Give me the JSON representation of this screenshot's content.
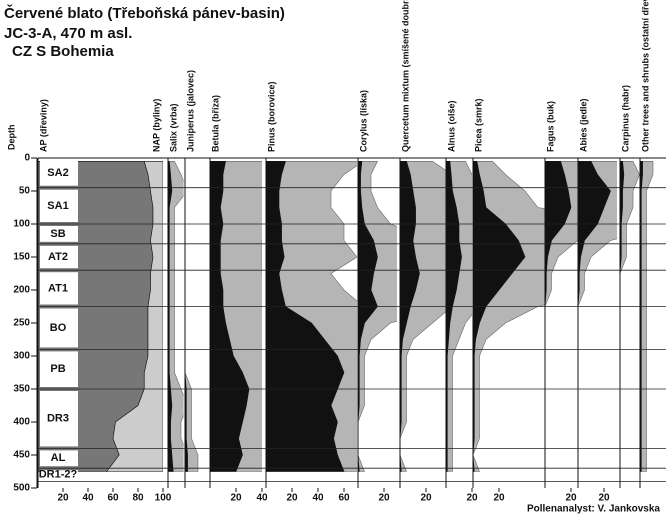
{
  "chart_data": {
    "type": "pollen",
    "title": "Červené blato (Třeboňská pánev-basin)",
    "subtitle": "JC-3-A, 470 m asl.",
    "region": "CZ  S Bohemia",
    "ylabel": "Depth",
    "credit": "Pollenanalyst: V. Jankovska",
    "ylim": [
      0,
      500
    ],
    "yticks": [
      0,
      50,
      100,
      150,
      200,
      250,
      300,
      350,
      400,
      450,
      500
    ],
    "depths": [
      5,
      25,
      50,
      75,
      100,
      125,
      150,
      175,
      200,
      225,
      250,
      275,
      300,
      325,
      350,
      375,
      400,
      425,
      450,
      475
    ],
    "exaggeration": 5,
    "zones": [
      {
        "label": "SA2",
        "top": 0,
        "bottom": 45
      },
      {
        "label": "SA1",
        "top": 45,
        "bottom": 100
      },
      {
        "label": "SB",
        "top": 100,
        "bottom": 130
      },
      {
        "label": "AT2",
        "top": 130,
        "bottom": 170
      },
      {
        "label": "AT1",
        "top": 170,
        "bottom": 225
      },
      {
        "label": "BO",
        "top": 225,
        "bottom": 290
      },
      {
        "label": "PB",
        "top": 290,
        "bottom": 350
      },
      {
        "label": "DR3",
        "top": 350,
        "bottom": 440
      },
      {
        "label": "AL",
        "top": 440,
        "bottom": 470
      },
      {
        "label": "DR1-2?",
        "top": 470,
        "bottom": 490
      }
    ],
    "series": [
      {
        "name": "AP (dřeviny)",
        "color": "#777777",
        "xlim": [
          0,
          100
        ],
        "xticks": [
          20,
          40,
          60,
          80,
          100
        ],
        "values": [
          85,
          88,
          90,
          92,
          92,
          90,
          92,
          90,
          90,
          88,
          88,
          88,
          88,
          85,
          85,
          80,
          62,
          60,
          65,
          55
        ]
      },
      {
        "name": "NAP (byliny)",
        "color": "#cccccc",
        "xlim": [
          0,
          100
        ],
        "from_right": true,
        "values": [
          15,
          12,
          10,
          8,
          8,
          10,
          8,
          10,
          10,
          12,
          12,
          12,
          12,
          15,
          15,
          20,
          38,
          40,
          35,
          45
        ]
      },
      {
        "name": "Salix (vrba)",
        "color": "#111111",
        "xlim": [
          0,
          12
        ],
        "values": [
          1,
          2,
          3,
          1,
          1,
          1,
          1,
          1,
          1,
          1,
          1,
          1,
          1,
          1,
          2,
          3,
          2,
          2,
          3,
          4
        ]
      },
      {
        "name": "Juniperus (jalovec)",
        "color": "#111111",
        "xlim": [
          0,
          18
        ],
        "values": [
          0,
          0,
          0,
          0,
          0,
          0,
          0,
          0,
          0,
          0,
          0,
          0,
          0,
          0,
          1,
          1,
          1,
          1,
          2,
          2
        ]
      },
      {
        "name": "Betula (bříza)",
        "color": "#111111",
        "xlim": [
          0,
          40
        ],
        "xticks": [
          20,
          40
        ],
        "values": [
          12,
          10,
          10,
          8,
          10,
          8,
          8,
          8,
          10,
          10,
          12,
          15,
          18,
          25,
          30,
          28,
          25,
          22,
          25,
          20
        ]
      },
      {
        "name": "Pinus (borovice)",
        "color": "#111111",
        "xlim": [
          0,
          70
        ],
        "xticks": [
          20,
          40,
          60
        ],
        "values": [
          15,
          12,
          10,
          10,
          12,
          12,
          14,
          10,
          12,
          15,
          35,
          45,
          55,
          60,
          55,
          50,
          55,
          52,
          55,
          60
        ]
      },
      {
        "name": "Corylus (líska)",
        "color": "#111111",
        "xlim": [
          0,
          30
        ],
        "xticks": [
          20
        ],
        "values": [
          3,
          2,
          2,
          3,
          5,
          12,
          15,
          12,
          10,
          15,
          5,
          2,
          1,
          1,
          1,
          1,
          0,
          0,
          0,
          1
        ]
      },
      {
        "name": "Quercetum mixtum (smíšené doubravy)",
        "color": "#111111",
        "xlim": [
          0,
          35
        ],
        "xticks": [
          20
        ],
        "values": [
          5,
          8,
          10,
          12,
          12,
          10,
          12,
          15,
          12,
          8,
          5,
          2,
          1,
          1,
          1,
          1,
          1,
          0,
          0,
          1
        ]
      },
      {
        "name": "Alnus (olše)",
        "color": "#111111",
        "xlim": [
          0,
          20
        ],
        "xticks": [
          20
        ],
        "values": [
          3,
          4,
          5,
          8,
          10,
          10,
          12,
          10,
          8,
          5,
          3,
          2,
          1,
          1,
          1,
          1,
          1,
          1,
          1,
          1
        ]
      },
      {
        "name": "Picea (smrk)",
        "color": "#111111",
        "xlim": [
          0,
          55
        ],
        "xticks": [
          20
        ],
        "values": [
          3,
          5,
          8,
          10,
          25,
          35,
          40,
          30,
          20,
          10,
          5,
          2,
          1,
          1,
          1,
          1,
          1,
          1,
          0,
          1
        ]
      },
      {
        "name": "Fagus (buk)",
        "color": "#111111",
        "xlim": [
          0,
          25
        ],
        "xticks": [
          20
        ],
        "values": [
          12,
          15,
          18,
          20,
          15,
          5,
          2,
          1,
          1,
          0,
          0,
          0,
          0,
          0,
          0,
          0,
          0,
          0,
          0,
          0
        ]
      },
      {
        "name": "Abies (jedle)",
        "color": "#111111",
        "xlim": [
          0,
          30
        ],
        "xticks": [
          20
        ],
        "values": [
          10,
          15,
          25,
          20,
          15,
          5,
          2,
          1,
          1,
          0,
          0,
          0,
          0,
          0,
          0,
          0,
          0,
          0,
          0,
          0
        ]
      },
      {
        "name": "Carpinus (habr)",
        "color": "#111111",
        "xlim": [
          0,
          15
        ],
        "values": [
          2,
          3,
          2,
          2,
          1,
          1,
          1,
          0,
          0,
          0,
          0,
          0,
          0,
          0,
          0,
          0,
          0,
          0,
          0,
          0
        ]
      },
      {
        "name": "Other trees and shrubs (ostatní dřeviny a keře)",
        "color": "#111111",
        "xlim": [
          0,
          20
        ],
        "values": [
          2,
          2,
          1,
          1,
          1,
          1,
          1,
          1,
          1,
          1,
          1,
          1,
          1,
          1,
          1,
          1,
          1,
          1,
          1,
          1
        ]
      }
    ]
  }
}
